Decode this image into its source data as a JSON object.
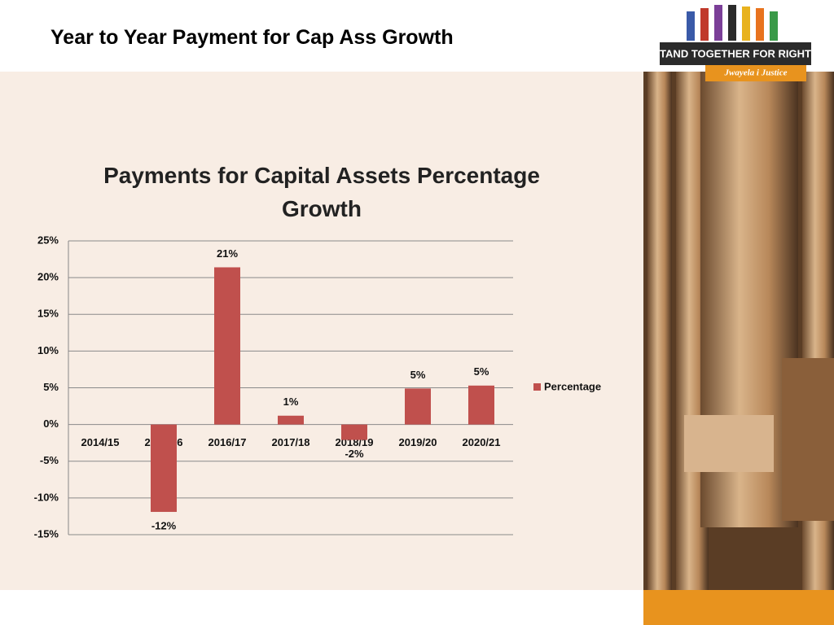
{
  "header": {
    "title": "Year to Year Payment for Cap Ass Growth"
  },
  "logo": {
    "line1": "STAND TOGETHER FOR RIGHTS",
    "line2": "Jwayela i Justice"
  },
  "chart_data": {
    "type": "bar",
    "title": "Payments for Capital Assets Percentage Growth",
    "categories": [
      "2014/15",
      "2015/16",
      "2016/17",
      "2017/18",
      "2018/19",
      "2019/20",
      "2020/21"
    ],
    "series": [
      {
        "name": "Percentage",
        "color": "#c0504d",
        "values": [
          null,
          -11.9,
          21.4,
          1.2,
          -2.1,
          4.9,
          5.3
        ],
        "value_labels": [
          null,
          "-12%",
          "21%",
          "1%",
          "-2%",
          "5%",
          "5%"
        ]
      }
    ],
    "ylim": [
      -15,
      25
    ],
    "yticks": [
      {
        "value": -15,
        "label": "-15%"
      },
      {
        "value": -10,
        "label": "-10%"
      },
      {
        "value": -5,
        "label": "-5%"
      },
      {
        "value": 0,
        "label": "0%"
      },
      {
        "value": 5,
        "label": "5%"
      },
      {
        "value": 10,
        "label": "10%"
      },
      {
        "value": 15,
        "label": "15%"
      },
      {
        "value": 20,
        "label": "20%"
      },
      {
        "value": 25,
        "label": "25%"
      }
    ],
    "grid": true,
    "legend": "right"
  }
}
